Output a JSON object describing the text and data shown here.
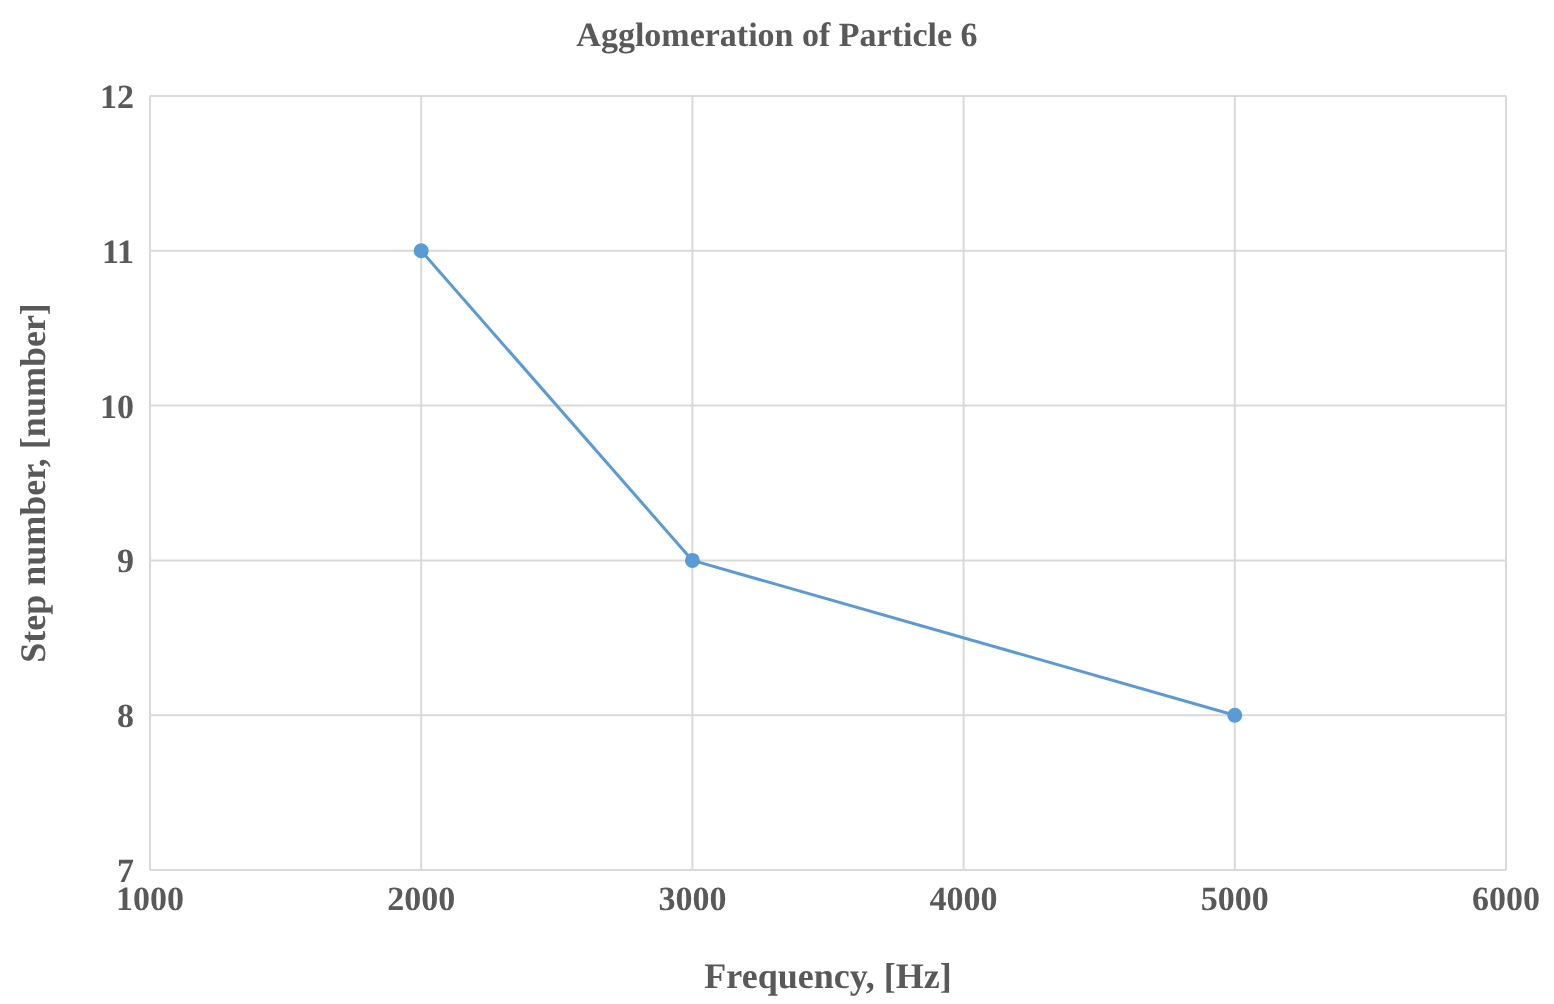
{
  "chart_data": {
    "type": "line",
    "title": "Agglomeration of Particle 6",
    "xlabel": "Frequency, [Hz]",
    "ylabel": "Step number, [number]",
    "x": [
      2000,
      3000,
      5000
    ],
    "series": [
      {
        "color": "#5b9bd5",
        "values": [
          11,
          9,
          8
        ]
      }
    ],
    "xlim": [
      1000,
      6000
    ],
    "xticks": [
      1000,
      2000,
      3000,
      4000,
      5000,
      6000
    ],
    "ylim": [
      7,
      12
    ],
    "yticks": [
      7,
      8,
      9,
      10,
      11,
      12
    ],
    "grid": true,
    "legend": false,
    "marker": "circle",
    "line_style": "solid"
  }
}
